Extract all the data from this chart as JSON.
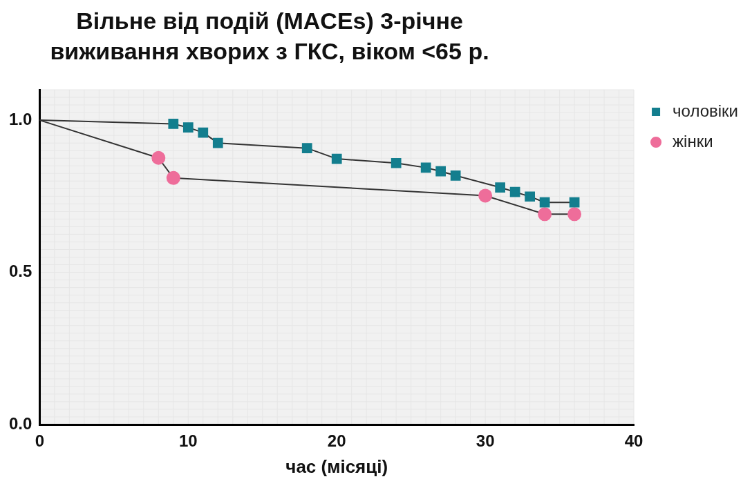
{
  "chart_data": {
    "type": "line",
    "title": "Вільне від подій (MACEs) 3-річне виживання хворих з ГКС, віком <65 р.",
    "xlabel": "час (місяці)",
    "xlim": [
      0,
      40
    ],
    "xticks": [
      0,
      10,
      20,
      30,
      40
    ],
    "ylim": [
      0,
      1.1
    ],
    "yticks": [
      {
        "value": 0,
        "label": "0.0"
      },
      0.5,
      {
        "value": 1,
        "label": "1.0"
      }
    ],
    "grid": true,
    "legend": "top right",
    "series": [
      {
        "name": "чоловіки",
        "color": "#137e8e",
        "marker": "square",
        "x": [
          0,
          9,
          10,
          11,
          12,
          18,
          20,
          24,
          26,
          27,
          28,
          31,
          32,
          33,
          34,
          36
        ],
        "values": [
          1,
          0.988,
          0.976,
          0.959,
          0.925,
          0.908,
          0.873,
          0.859,
          0.844,
          0.832,
          0.818,
          0.779,
          0.764,
          0.749,
          0.73,
          0.73
        ]
      },
      {
        "name": "жінки",
        "color": "#ee6d9a",
        "marker": "circle",
        "x": [
          0,
          8,
          9,
          30,
          34,
          36
        ],
        "values": [
          1,
          0.876,
          0.81,
          0.752,
          0.691,
          0.691
        ]
      }
    ]
  }
}
